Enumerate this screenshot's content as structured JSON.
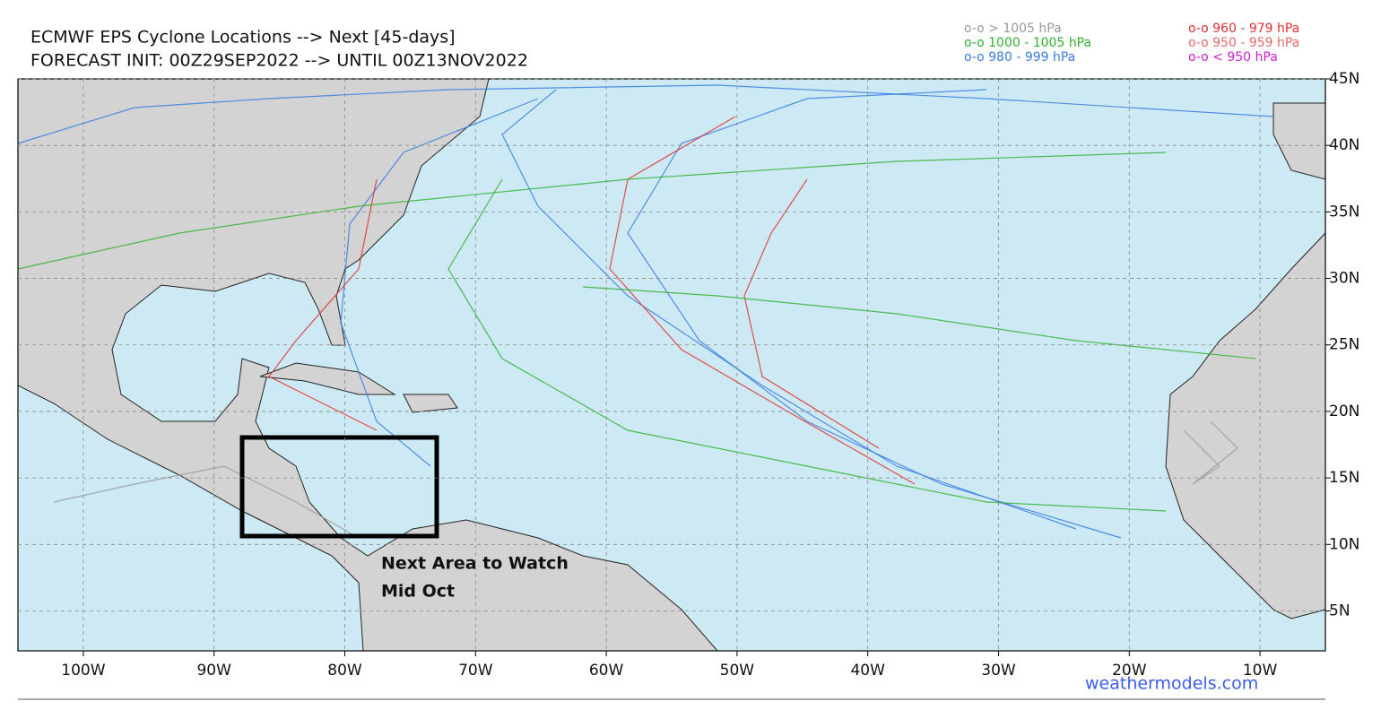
{
  "title": [
    "ECMWF EPS Cyclone Locations --> Next [45-days]",
    "FORECAST INIT: 00Z29SEP2022 --> UNTIL 00Z13NOV2022"
  ],
  "legend": [
    {
      "label": "o-o > 1005 hPa",
      "color": "#9a9a9a"
    },
    {
      "label": "o-o 1000 - 1005 hPa",
      "color": "#33b033"
    },
    {
      "label": "o-o 980 - 999 hPa",
      "color": "#3a7de0"
    },
    {
      "label": "o-o 960 - 979 hPa",
      "color": "#e03030"
    },
    {
      "label": "o-o 950 - 959 hPa",
      "color": "#e86a6a"
    },
    {
      "label": "o-o < 950 hPa",
      "color": "#d020d0"
    }
  ],
  "map": {
    "xlim": [
      -105,
      -5
    ],
    "ylim": [
      2,
      45
    ],
    "grid": true,
    "xticks": [
      {
        "value": -100,
        "label": "100W"
      },
      {
        "value": -90,
        "label": "90W"
      },
      {
        "value": -80,
        "label": "80W"
      },
      {
        "value": -70,
        "label": "70W"
      },
      {
        "value": -60,
        "label": "60W"
      },
      {
        "value": -50,
        "label": "50W"
      },
      {
        "value": -40,
        "label": "40W"
      },
      {
        "value": -30,
        "label": "30W"
      },
      {
        "value": -20,
        "label": "20W"
      },
      {
        "value": -10,
        "label": "10W"
      }
    ],
    "yticks": [
      {
        "value": 45,
        "label": "45N"
      },
      {
        "value": 40,
        "label": "40N"
      },
      {
        "value": 35,
        "label": "35N"
      },
      {
        "value": 30,
        "label": "30N"
      },
      {
        "value": 25,
        "label": "25N"
      },
      {
        "value": 20,
        "label": "20N"
      },
      {
        "value": 15,
        "label": "15N"
      },
      {
        "value": 10,
        "label": "10N"
      },
      {
        "value": 5,
        "label": "5N"
      }
    ]
  },
  "annotation": [
    "Next Area to Watch",
    "Mid Oct"
  ],
  "credit": "weathermodels.com"
}
